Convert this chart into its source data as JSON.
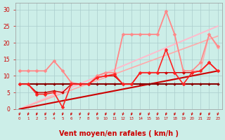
{
  "background_color": "#cceee8",
  "grid_color": "#aacccc",
  "xlabel": "Vent moyen/en rafales ( km/h )",
  "xlabel_color": "#cc0000",
  "xlabel_fontsize": 7,
  "x": [
    0,
    1,
    2,
    3,
    4,
    5,
    6,
    7,
    8,
    9,
    10,
    11,
    12,
    13,
    14,
    15,
    16,
    17,
    18,
    19,
    20,
    21,
    22,
    23
  ],
  "ylim": [
    0,
    32
  ],
  "xlim": [
    -0.5,
    23.5
  ],
  "yticks": [
    0,
    5,
    10,
    15,
    20,
    25,
    30
  ],
  "series": [
    {
      "y": [
        0.0,
        1.087,
        2.174,
        3.261,
        4.348,
        5.435,
        6.522,
        7.609,
        8.696,
        9.783,
        10.87,
        11.957,
        13.043,
        14.13,
        15.217,
        16.304,
        17.391,
        18.478,
        19.565,
        20.652,
        21.739,
        22.826,
        23.913,
        25.0
      ],
      "color": "#ffbbcc",
      "lw": 1.4,
      "marker": null,
      "ms": 0,
      "zorder": 1
    },
    {
      "y": [
        0.0,
        0.957,
        1.913,
        2.87,
        3.826,
        4.783,
        5.739,
        6.696,
        7.652,
        8.609,
        9.565,
        10.522,
        11.478,
        12.435,
        13.391,
        14.348,
        15.304,
        16.261,
        17.217,
        18.174,
        19.13,
        20.087,
        21.043,
        22.0
      ],
      "color": "#ffaaaa",
      "lw": 1.2,
      "marker": null,
      "ms": 0,
      "zorder": 1
    },
    {
      "y": [
        11.5,
        11.5,
        11.5,
        11.5,
        14.5,
        11.5,
        8.0,
        7.5,
        7.5,
        10.0,
        11.0,
        11.0,
        22.5,
        22.5,
        22.5,
        22.5,
        22.5,
        29.5,
        22.5,
        11.5,
        11.5,
        11.5,
        22.5,
        18.5
      ],
      "color": "#ffaaaa",
      "lw": 1.0,
      "marker": "D",
      "ms": 2.0,
      "zorder": 2
    },
    {
      "y": [
        11.5,
        11.5,
        11.5,
        11.5,
        14.5,
        11.5,
        8.0,
        7.5,
        7.5,
        10.0,
        11.0,
        11.0,
        22.5,
        22.5,
        22.5,
        22.5,
        22.5,
        29.5,
        22.5,
        11.5,
        11.5,
        14.0,
        22.5,
        19.0
      ],
      "color": "#ff8888",
      "lw": 1.2,
      "marker": "D",
      "ms": 2.5,
      "zorder": 3
    },
    {
      "y": [
        0.0,
        0.5,
        1.0,
        1.5,
        2.0,
        2.5,
        3.0,
        3.5,
        4.0,
        4.5,
        5.0,
        5.5,
        6.0,
        6.5,
        7.0,
        7.5,
        8.0,
        8.5,
        9.0,
        9.5,
        10.0,
        10.5,
        11.0,
        11.5
      ],
      "color": "#cc0000",
      "lw": 1.5,
      "marker": null,
      "ms": 0,
      "zorder": 1
    },
    {
      "y": [
        7.5,
        7.5,
        7.5,
        7.5,
        7.5,
        7.5,
        7.5,
        7.5,
        7.5,
        7.5,
        7.5,
        7.5,
        7.5,
        7.5,
        7.5,
        7.5,
        7.5,
        7.5,
        7.5,
        7.5,
        7.5,
        7.5,
        7.5,
        7.5
      ],
      "color": "#880000",
      "lw": 1.5,
      "marker": "D",
      "ms": 2.0,
      "zorder": 4
    },
    {
      "y": [
        7.5,
        7.5,
        4.5,
        4.5,
        5.0,
        0.5,
        7.5,
        7.5,
        7.5,
        9.5,
        10.0,
        10.5,
        7.5,
        7.5,
        11.0,
        11.0,
        11.0,
        18.0,
        11.0,
        7.5,
        11.0,
        11.5,
        14.0,
        11.5
      ],
      "color": "#ff2222",
      "lw": 1.2,
      "marker": "D",
      "ms": 2.5,
      "zorder": 5
    },
    {
      "y": [
        7.5,
        7.5,
        5.0,
        5.0,
        5.5,
        5.0,
        7.5,
        7.5,
        7.5,
        9.5,
        10.0,
        10.0,
        7.5,
        7.5,
        11.0,
        11.0,
        11.0,
        11.0,
        11.0,
        11.0,
        11.0,
        11.5,
        14.0,
        11.5
      ],
      "color": "#cc0000",
      "lw": 1.0,
      "marker": "D",
      "ms": 2.0,
      "zorder": 4
    }
  ],
  "arrow_color": "#cc0000"
}
